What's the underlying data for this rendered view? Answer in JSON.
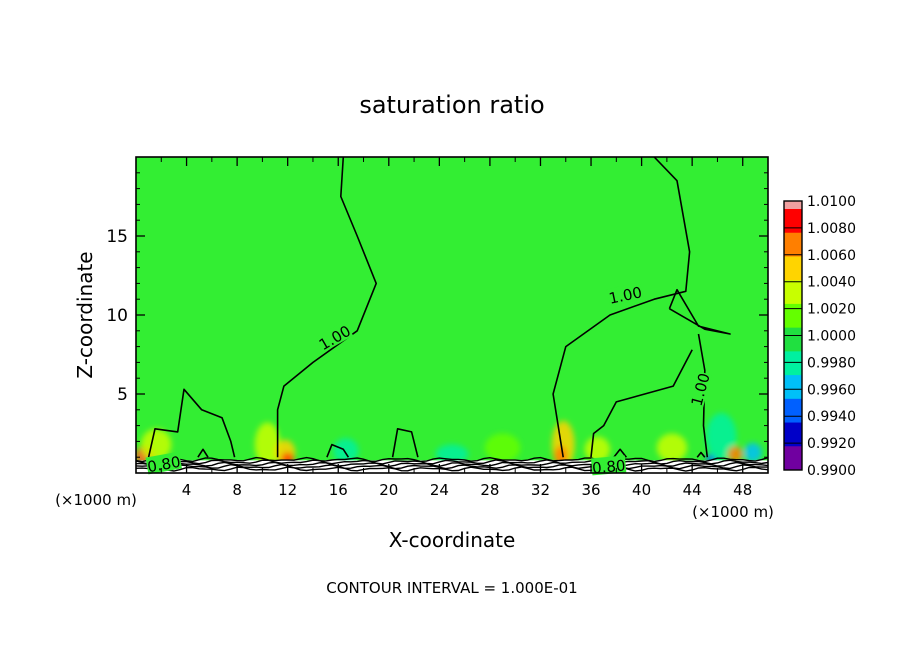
{
  "chart_data": {
    "type": "heatmap",
    "title": "saturation ratio",
    "xlabel": "X-coordinate",
    "ylabel": "Z-coordinate",
    "x_units_left": "(×1000 m)",
    "x_units_right": "(×1000 m)",
    "xlim": [
      0,
      50
    ],
    "ylim": [
      0,
      20
    ],
    "x_ticks": [
      4,
      8,
      12,
      16,
      20,
      24,
      28,
      32,
      36,
      40,
      44,
      48
    ],
    "y_ticks": [
      5,
      10,
      15
    ],
    "footer": "CONTOUR INTERVAL = 1.000E-01",
    "colorbar": {
      "levels": [
        "1.0100",
        "1.0080",
        "1.0060",
        "1.0040",
        "1.0020",
        "1.0000",
        "0.9980",
        "0.9960",
        "0.9940",
        "0.9920",
        "0.9900"
      ],
      "colors": [
        "#ff0000",
        "#ff7f00",
        "#ffd400",
        "#c8ff00",
        "#64ff00",
        "#20e040",
        "#00f0a0",
        "#00c0f8",
        "#0060ff",
        "#0000c8",
        "#7000a0"
      ],
      "top_color": "#f0a0a0"
    },
    "background_value": 1.0,
    "background_color": "#33ee33",
    "contour_labels": [
      {
        "text": "1.00",
        "x": 15.7,
        "z": 8.6,
        "rotate": -30
      },
      {
        "text": "1.00",
        "x": 38.7,
        "z": 11.3,
        "rotate": -12
      },
      {
        "text": "1.00",
        "x": 44.6,
        "z": 5.3,
        "rotate": -75
      },
      {
        "text": "0.80",
        "x": 2.2,
        "z": 0.6,
        "rotate": -10
      },
      {
        "text": "0.80",
        "x": 37.4,
        "z": 0.45,
        "rotate": -5
      }
    ],
    "contour_1_00": [
      [
        [
          16.4,
          20
        ],
        [
          16.2,
          17.5
        ],
        [
          17.5,
          15.0
        ],
        [
          19.0,
          12.0
        ],
        [
          17.5,
          9.0
        ],
        [
          14.0,
          7.0
        ],
        [
          11.7,
          5.5
        ],
        [
          11.2,
          4.0
        ],
        [
          11.2,
          1.0
        ]
      ],
      [
        [
          41.0,
          20
        ],
        [
          42.8,
          18.5
        ],
        [
          43.8,
          14.0
        ],
        [
          43.5,
          11.5
        ],
        [
          41.0,
          11.0
        ],
        [
          37.5,
          10.0
        ],
        [
          34.0,
          8.0
        ],
        [
          33.0,
          5.0
        ],
        [
          33.8,
          1.0
        ]
      ],
      [
        [
          44.5,
          8.8
        ],
        [
          45.0,
          6.5
        ],
        [
          44.9,
          3.0
        ],
        [
          45.2,
          1.0
        ]
      ],
      [
        [
          44.0,
          7.8
        ],
        [
          42.5,
          5.5
        ],
        [
          38.0,
          4.5
        ],
        [
          37.0,
          3.0
        ],
        [
          36.2,
          2.5
        ],
        [
          36.0,
          1.0
        ]
      ],
      [
        [
          42.2,
          10.4
        ],
        [
          45.0,
          9.1
        ],
        [
          47.0,
          8.8
        ],
        [
          44.5,
          9.3
        ],
        [
          42.8,
          11.6
        ],
        [
          42.2,
          10.4
        ]
      ],
      [
        [
          1.0,
          1.0
        ],
        [
          1.5,
          2.8
        ],
        [
          3.3,
          2.6
        ],
        [
          3.8,
          5.3
        ],
        [
          5.2,
          4.0
        ],
        [
          6.8,
          3.5
        ],
        [
          7.5,
          2.0
        ],
        [
          7.8,
          1.0
        ]
      ],
      [
        [
          4.9,
          1.0
        ],
        [
          5.3,
          1.5
        ],
        [
          5.7,
          1.0
        ]
      ],
      [
        [
          15.1,
          1.0
        ],
        [
          15.5,
          1.8
        ],
        [
          16.4,
          1.5
        ],
        [
          16.8,
          1.0
        ]
      ],
      [
        [
          20.3,
          1.0
        ],
        [
          20.7,
          2.8
        ],
        [
          21.8,
          2.6
        ],
        [
          22.3,
          1.0
        ]
      ],
      [
        [
          37.8,
          1.0
        ],
        [
          38.3,
          1.5
        ],
        [
          38.8,
          1.0
        ]
      ],
      [
        [
          44.4,
          1.0
        ],
        [
          44.7,
          1.3
        ],
        [
          45.0,
          1.0
        ]
      ]
    ],
    "anomalies": [
      {
        "x": 0.7,
        "z": 1.1,
        "rx": 0.8,
        "rz": 0.6,
        "color": "#ff6020"
      },
      {
        "x": 1.6,
        "z": 1.8,
        "rx": 1.2,
        "rz": 1.0,
        "color": "#c8ff00"
      },
      {
        "x": 10.4,
        "z": 1.8,
        "rx": 1.0,
        "rz": 1.4,
        "color": "#c8ff00"
      },
      {
        "x": 11.8,
        "z": 1.3,
        "rx": 0.8,
        "rz": 0.8,
        "color": "#ffd400"
      },
      {
        "x": 12.0,
        "z": 0.9,
        "rx": 0.5,
        "rz": 0.4,
        "color": "#ff4000"
      },
      {
        "x": 16.6,
        "z": 1.4,
        "rx": 1.0,
        "rz": 0.8,
        "color": "#00f0a0"
      },
      {
        "x": 25.0,
        "z": 1.2,
        "rx": 1.3,
        "rz": 0.6,
        "color": "#00f0a0"
      },
      {
        "x": 29.0,
        "z": 1.6,
        "rx": 1.4,
        "rz": 0.9,
        "color": "#64ff00"
      },
      {
        "x": 33.8,
        "z": 1.8,
        "rx": 0.9,
        "rz": 1.5,
        "color": "#ffd400"
      },
      {
        "x": 33.6,
        "z": 1.1,
        "rx": 0.5,
        "rz": 0.6,
        "color": "#ff7f00"
      },
      {
        "x": 36.5,
        "z": 1.5,
        "rx": 1.0,
        "rz": 0.8,
        "color": "#c8ff00"
      },
      {
        "x": 45.5,
        "z": 0.9,
        "rx": 0.4,
        "rz": 0.3,
        "color": "#0060ff"
      },
      {
        "x": 46.3,
        "z": 2.3,
        "rx": 1.2,
        "rz": 1.5,
        "color": "#00f0a0"
      },
      {
        "x": 47.4,
        "z": 1.2,
        "rx": 0.6,
        "rz": 0.5,
        "color": "#ff7f00"
      },
      {
        "x": 48.8,
        "z": 1.3,
        "rx": 0.7,
        "rz": 0.6,
        "color": "#00c0f8"
      },
      {
        "x": 42.4,
        "z": 1.6,
        "rx": 1.2,
        "rz": 0.9,
        "color": "#c8ff00"
      }
    ]
  }
}
